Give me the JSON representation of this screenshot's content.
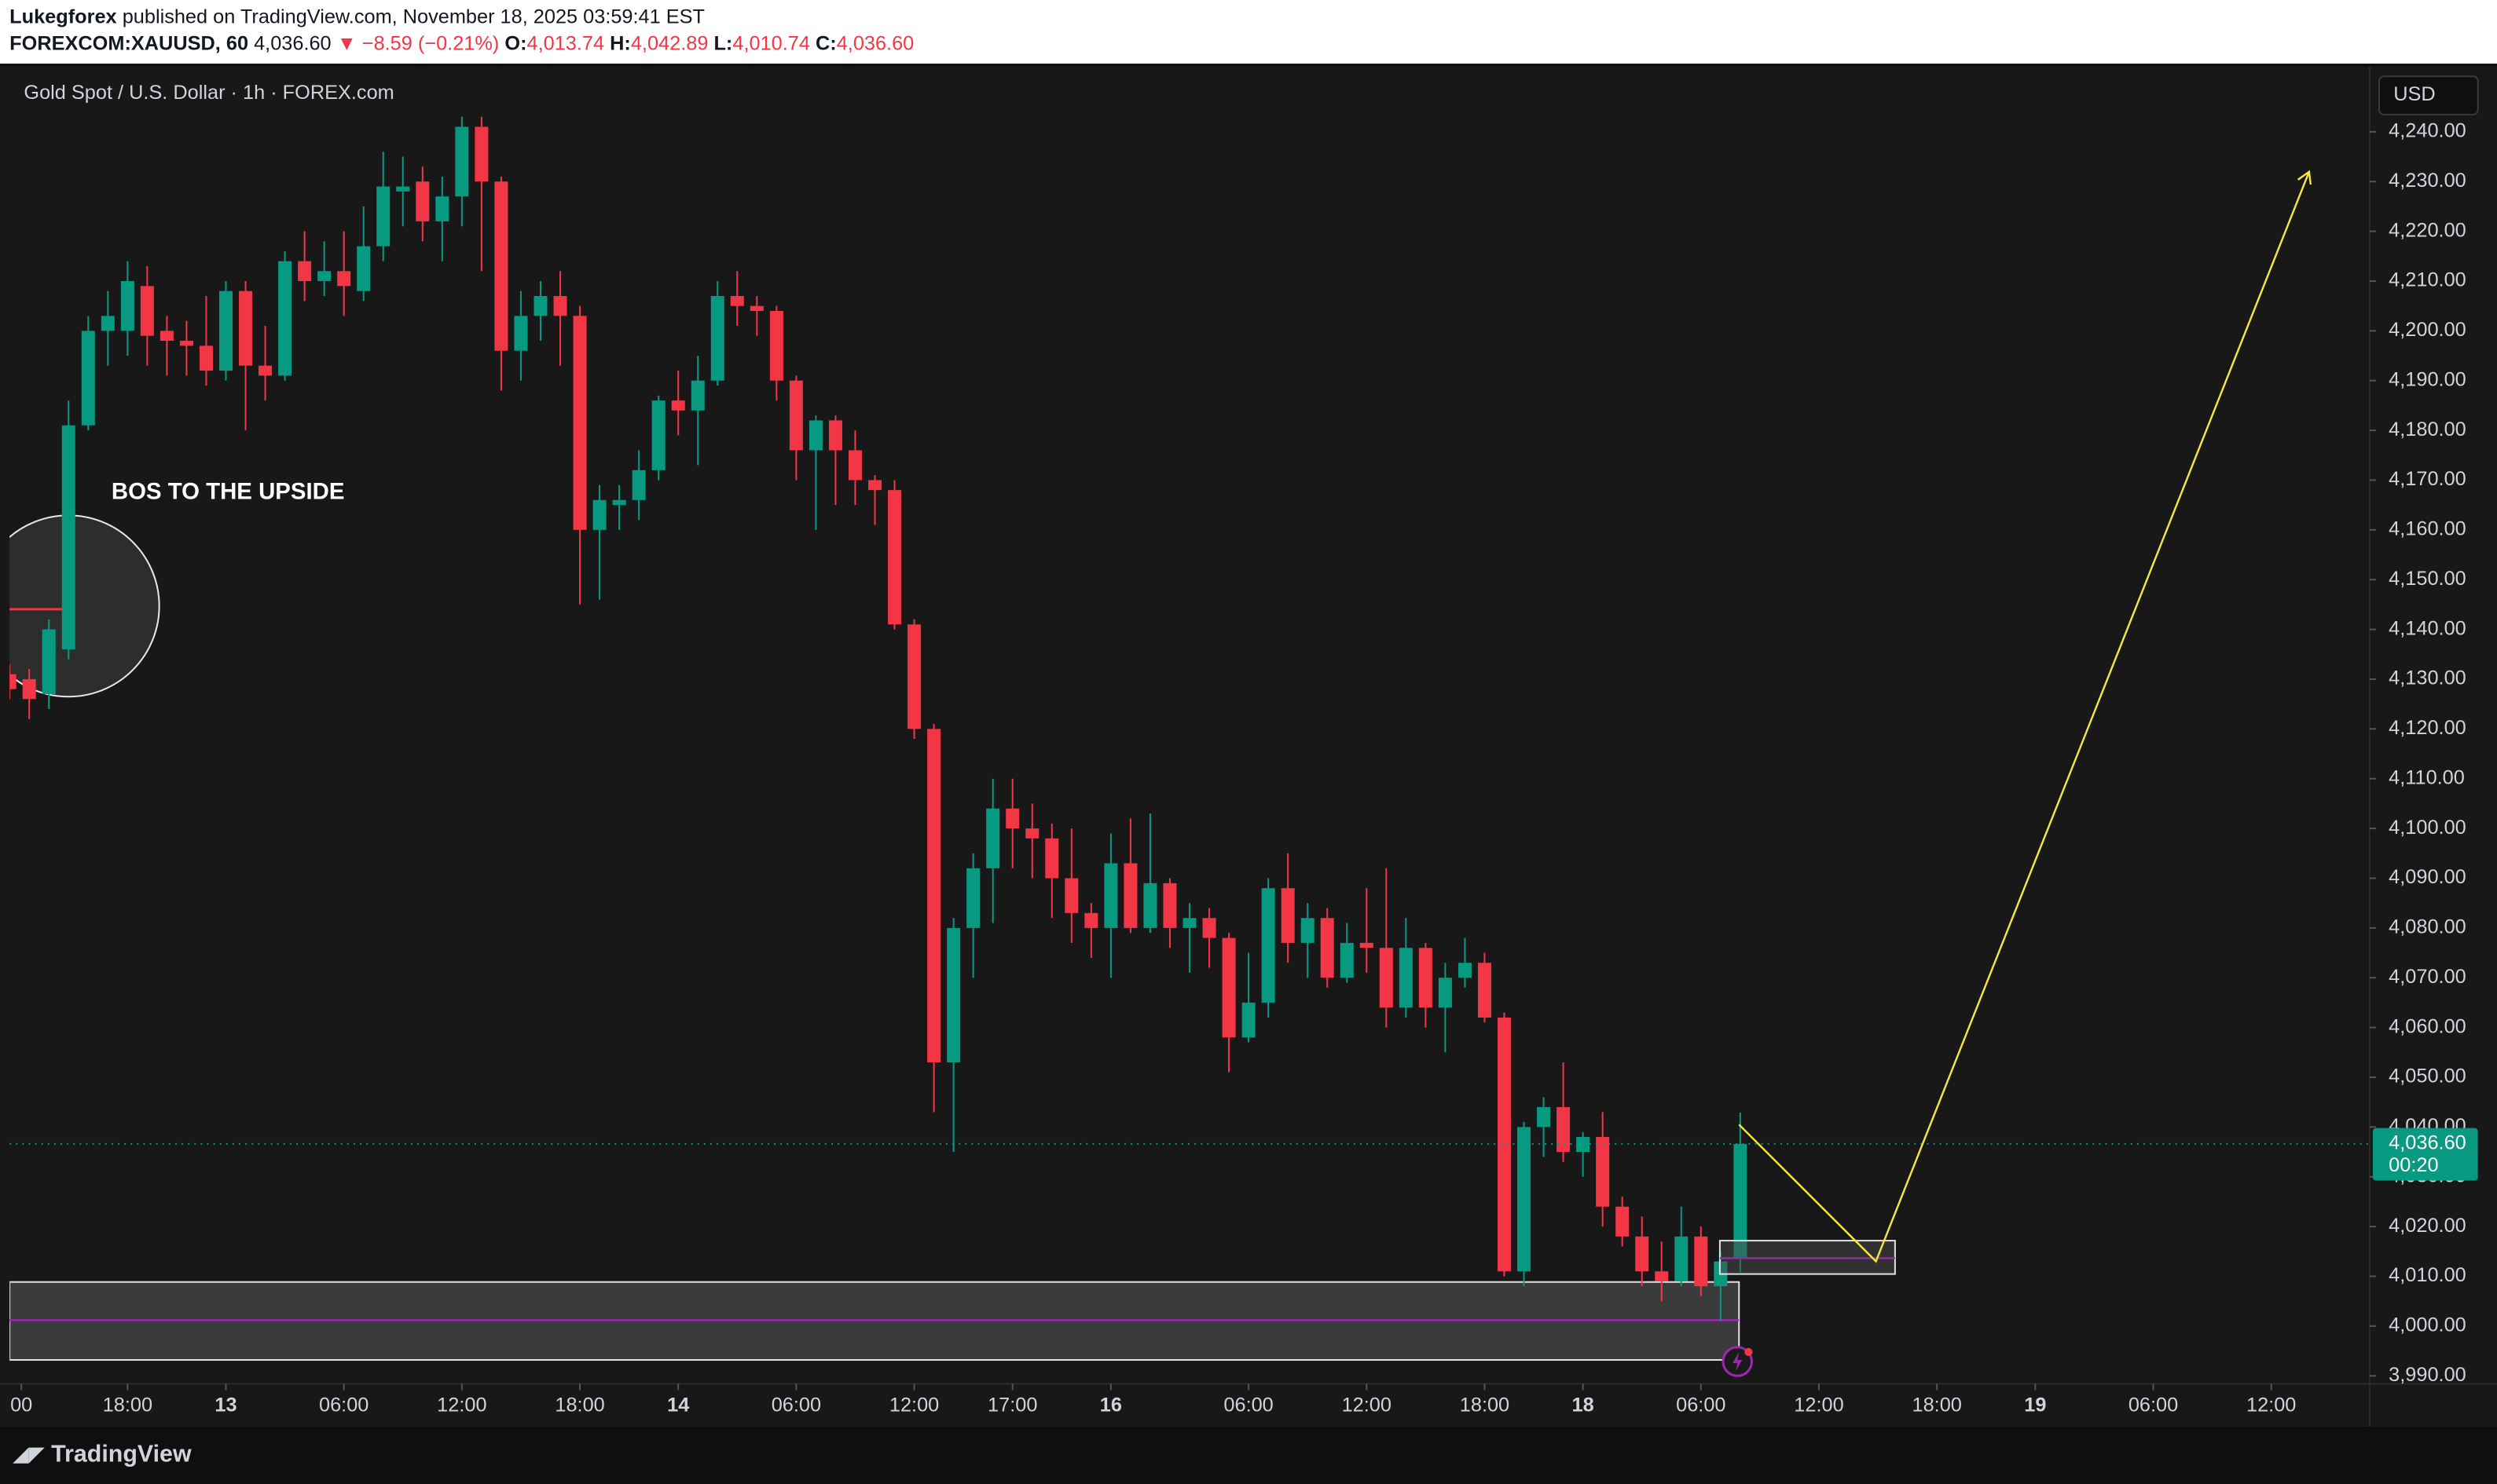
{
  "header": {
    "author": "Lukegforex",
    "published": "published on TradingView.com, November 18, 2025 03:59:41 EST",
    "symbol": "FOREXCOM:XAUUSD, 60",
    "last": "4,036.60",
    "change": "▼ −8.59 (−0.21%)",
    "ohlc": [
      {
        "label": "O:",
        "value": "4,013.74"
      },
      {
        "label": "H:",
        "value": "4,042.89"
      },
      {
        "label": "L:",
        "value": "4,010.74"
      },
      {
        "label": "C:",
        "value": "4,036.60"
      }
    ]
  },
  "chart_data": {
    "type": "candlestick",
    "title": "Gold Spot / U.S. Dollar · 1h · FOREX.com",
    "currency": "USD",
    "annotation": "BOS TO THE UPSIDE",
    "last_price_label": "4,036.60",
    "countdown": "00:20",
    "logo": "TradingView",
    "up_color": "#089981",
    "down_color": "#f23645",
    "open": [
      4131,
      4130,
      4127,
      4136,
      4181,
      4200,
      4200,
      4209,
      4200,
      4198,
      4197,
      4192,
      4208,
      4193,
      4191,
      4214,
      4210,
      4212,
      4208,
      4217,
      4228,
      4230,
      4222,
      4227,
      4241,
      4230,
      4196,
      4203,
      4207,
      4203,
      4160,
      4165,
      4166,
      4172,
      4186,
      4184,
      4190,
      4207,
      4205,
      4204,
      4190,
      4176,
      4182,
      4176,
      4170,
      4168,
      4141,
      4120,
      4053,
      4080,
      4092,
      4104,
      4100,
      4098,
      4090,
      4083,
      4080,
      4093,
      4080,
      4089,
      4080,
      4082,
      4078,
      4058,
      4065,
      4088,
      4077,
      4082,
      4070,
      4077,
      4076,
      4064,
      4076,
      4064,
      4070,
      4073,
      4062,
      4011,
      4040,
      4044,
      4035,
      4038,
      4024,
      4018,
      4011,
      4009,
      4018,
      4008,
      4013.74
    ],
    "high": [
      4133,
      4132,
      4142,
      4186,
      4203,
      4208,
      4214,
      4213,
      4203,
      4202,
      4207,
      4210,
      4210,
      4201,
      4216,
      4220,
      4218,
      4220,
      4225,
      4236,
      4235,
      4233,
      4231,
      4243,
      4243,
      4231,
      4208,
      4210,
      4212,
      4205,
      4169,
      4169,
      4176,
      4187,
      4192,
      4195,
      4210,
      4212,
      4207,
      4205,
      4191,
      4183,
      4183,
      4180,
      4171,
      4170,
      4142,
      4121,
      4082,
      4095,
      4110,
      4110,
      4105,
      4101,
      4100,
      4085,
      4099,
      4102,
      4103,
      4090,
      4085,
      4084,
      4079,
      4075,
      4090,
      4095,
      4085,
      4084,
      4081,
      4088,
      4092,
      4082,
      4077,
      4073,
      4078,
      4075,
      4063,
      4041,
      4046,
      4053,
      4039,
      4043,
      4026,
      4022,
      4017,
      4024,
      4020,
      4015,
      4042.89
    ],
    "low": [
      4126,
      4122,
      4124,
      4134,
      4180,
      4193,
      4195,
      4193,
      4191,
      4191,
      4189,
      4190,
      4180,
      4186,
      4190,
      4206,
      4207,
      4203,
      4206,
      4214,
      4221,
      4218,
      4214,
      4221,
      4212,
      4188,
      4190,
      4198,
      4193,
      4145,
      4146,
      4160,
      4162,
      4170,
      4179,
      4173,
      4189,
      4201,
      4199,
      4186,
      4170,
      4160,
      4165,
      4165,
      4161,
      4140,
      4118,
      4043,
      4035,
      4070,
      4081,
      4092,
      4090,
      4082,
      4077,
      4074,
      4070,
      4079,
      4079,
      4076,
      4071,
      4072,
      4051,
      4057,
      4062,
      4073,
      4070,
      4068,
      4069,
      4071,
      4060,
      4062,
      4060,
      4055,
      4068,
      4061,
      4010,
      4008,
      4034,
      4033,
      4030,
      4020,
      4016,
      4008,
      4005,
      4008,
      4006,
      4001,
      4010.74
    ],
    "close": [
      4128,
      4126,
      4140,
      4181,
      4200,
      4203,
      4210,
      4199,
      4198,
      4197,
      4192,
      4208,
      4193,
      4191,
      4214,
      4210,
      4212,
      4209,
      4217,
      4229,
      4229,
      4222,
      4227,
      4241,
      4230,
      4196,
      4203,
      4207,
      4203,
      4160,
      4166,
      4166,
      4172,
      4186,
      4184,
      4190,
      4207,
      4205,
      4204,
      4190,
      4176,
      4182,
      4176,
      4170,
      4168,
      4141,
      4120,
      4053,
      4080,
      4092,
      4104,
      4100,
      4098,
      4090,
      4083,
      4080,
      4093,
      4080,
      4089,
      4080,
      4082,
      4078,
      4058,
      4065,
      4088,
      4077,
      4082,
      4070,
      4077,
      4076,
      4064,
      4076,
      4064,
      4070,
      4073,
      4062,
      4011,
      4040,
      4044,
      4035,
      4038,
      4024,
      4018,
      4011,
      4009,
      4018,
      4008,
      4013,
      4036.6
    ],
    "xlim": [
      0,
      120
    ],
    "xticks": [
      {
        "value": 0.6,
        "label": "00"
      },
      {
        "value": 6,
        "label": "18:00"
      },
      {
        "value": 11,
        "label": "13"
      },
      {
        "value": 17,
        "label": "06:00"
      },
      {
        "value": 23,
        "label": "12:00"
      },
      {
        "value": 29,
        "label": "18:00"
      },
      {
        "value": 34,
        "label": "14"
      },
      {
        "value": 40,
        "label": "06:00"
      },
      {
        "value": 46,
        "label": "12:00"
      },
      {
        "value": 51,
        "label": "17:00"
      },
      {
        "value": 56,
        "label": "16"
      },
      {
        "value": 63,
        "label": "06:00"
      },
      {
        "value": 69,
        "label": "12:00"
      },
      {
        "value": 75,
        "label": "18:00"
      },
      {
        "value": 80,
        "label": "18"
      },
      {
        "value": 86,
        "label": "06:00"
      },
      {
        "value": 92,
        "label": "12:00"
      },
      {
        "value": 98,
        "label": "18:00"
      },
      {
        "value": 103,
        "label": "19"
      },
      {
        "value": 109,
        "label": "06:00"
      },
      {
        "value": 115,
        "label": "12:00"
      }
    ],
    "ylim": [
      3988.4,
      4252.1
    ],
    "yticks": [
      {
        "value": 3990,
        "label": "3,990.00"
      },
      {
        "value": 4000,
        "label": "4,000.00"
      },
      {
        "value": 4010,
        "label": "4,010.00"
      },
      {
        "value": 4020,
        "label": "4,020.00"
      },
      {
        "value": 4030,
        "label": "4,030.00"
      },
      {
        "value": 4040,
        "label": "4,040.00"
      },
      {
        "value": 4050,
        "label": "4,050.00"
      },
      {
        "value": 4060,
        "label": "4,060.00"
      },
      {
        "value": 4070,
        "label": "4,070.00"
      },
      {
        "value": 4080,
        "label": "4,080.00"
      },
      {
        "value": 4090,
        "label": "4,090.00"
      },
      {
        "value": 4100,
        "label": "4,100.00"
      },
      {
        "value": 4110,
        "label": "4,110.00"
      },
      {
        "value": 4120,
        "label": "4,120.00"
      },
      {
        "value": 4130,
        "label": "4,130.00"
      },
      {
        "value": 4140,
        "label": "4,140.00"
      },
      {
        "value": 4150,
        "label": "4,150.00"
      },
      {
        "value": 4160,
        "label": "4,160.00"
      },
      {
        "value": 4170,
        "label": "4,170.00"
      },
      {
        "value": 4180,
        "label": "4,180.00"
      },
      {
        "value": 4190,
        "label": "4,190.00"
      },
      {
        "value": 4200,
        "label": "4,200.00"
      },
      {
        "value": 4210,
        "label": "4,210.00"
      },
      {
        "value": 4220,
        "label": "4,220.00"
      },
      {
        "value": 4230,
        "label": "4,230.00"
      },
      {
        "value": 4240,
        "label": "4,240.00"
      }
    ]
  }
}
